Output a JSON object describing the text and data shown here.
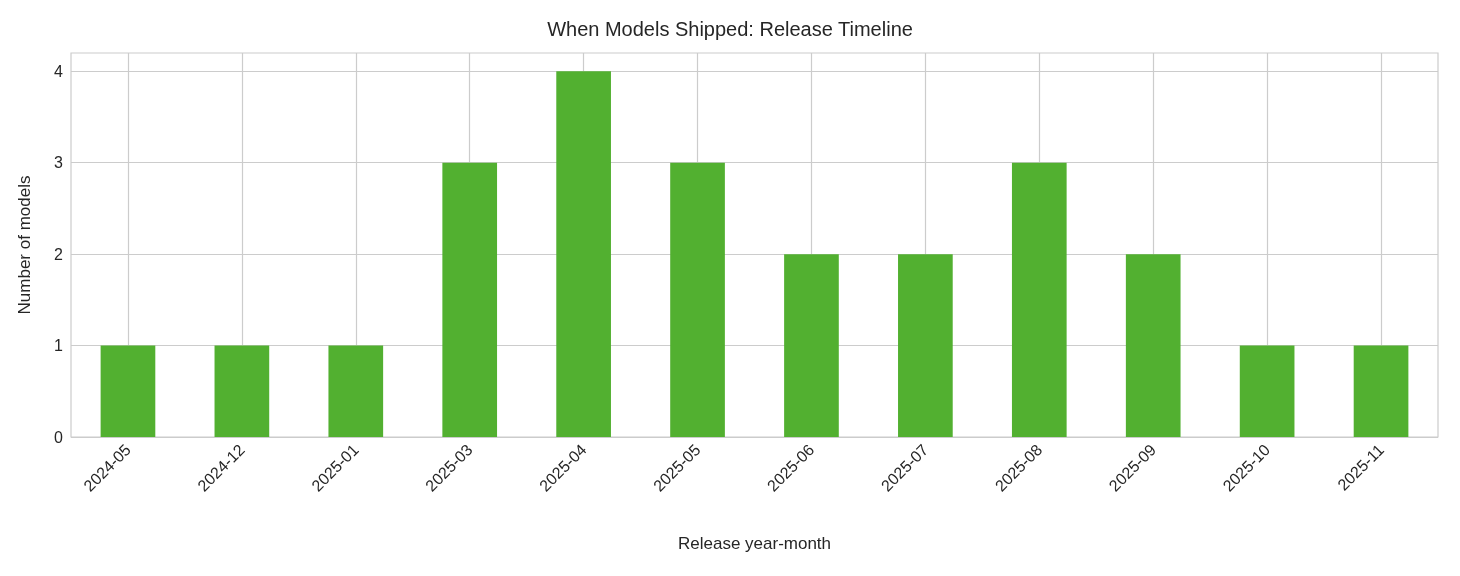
{
  "chart_data": {
    "type": "bar",
    "title": "When Models Shipped: Release Timeline",
    "xlabel": "Release year-month",
    "ylabel": "Number of models",
    "categories": [
      "2024-05",
      "2024-12",
      "2025-01",
      "2025-03",
      "2025-04",
      "2025-05",
      "2025-06",
      "2025-07",
      "2025-08",
      "2025-09",
      "2025-10",
      "2025-11"
    ],
    "values": [
      1,
      1,
      1,
      3,
      4,
      3,
      2,
      2,
      3,
      2,
      1,
      1
    ],
    "color": "#52b030",
    "ylim": [
      0,
      4.2
    ],
    "yticks": [
      0,
      1,
      2,
      3,
      4
    ],
    "grid": true
  }
}
